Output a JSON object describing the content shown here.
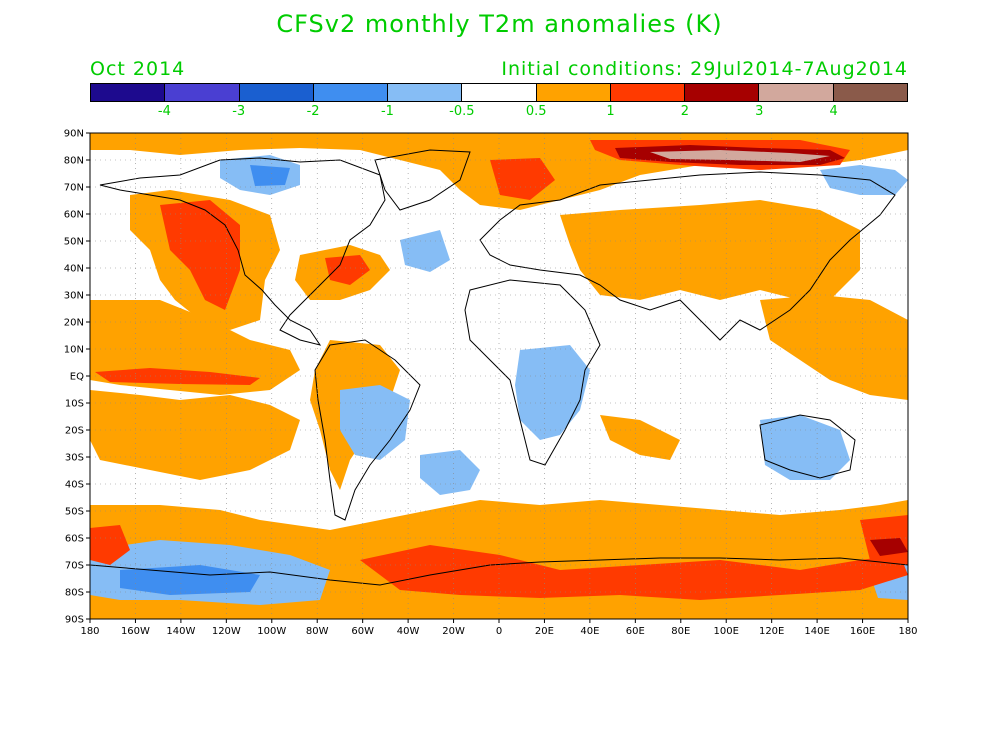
{
  "title": "CFSv2 monthly T2m anomalies (K)",
  "month_label": "Oct 2014",
  "initial_conditions": "Initial conditions: 29Jul2014-7Aug2014",
  "legend": {
    "colors": [
      "#1d0a8e",
      "#4a3fd2",
      "#1a5fd0",
      "#3f8ef0",
      "#86bdf5",
      "#ffffff",
      "#ffa200",
      "#ff3a00",
      "#a60000",
      "#d2a89d",
      "#8a5a4a"
    ],
    "labels": [
      "-4",
      "-3",
      "-2",
      "-1",
      "-0.5",
      "0.5",
      "1",
      "2",
      "3",
      "4"
    ]
  },
  "axes": {
    "lat_labels": [
      "90N",
      "80N",
      "70N",
      "60N",
      "50N",
      "40N",
      "30N",
      "20N",
      "10N",
      "EQ",
      "10S",
      "20S",
      "30S",
      "40S",
      "50S",
      "60S",
      "70S",
      "80S",
      "90S"
    ],
    "lon_labels": [
      "180",
      "160W",
      "140W",
      "120W",
      "100W",
      "80W",
      "60W",
      "40W",
      "20W",
      "0",
      "20E",
      "40E",
      "60E",
      "80E",
      "100E",
      "120E",
      "140E",
      "160E",
      "180"
    ]
  }
}
